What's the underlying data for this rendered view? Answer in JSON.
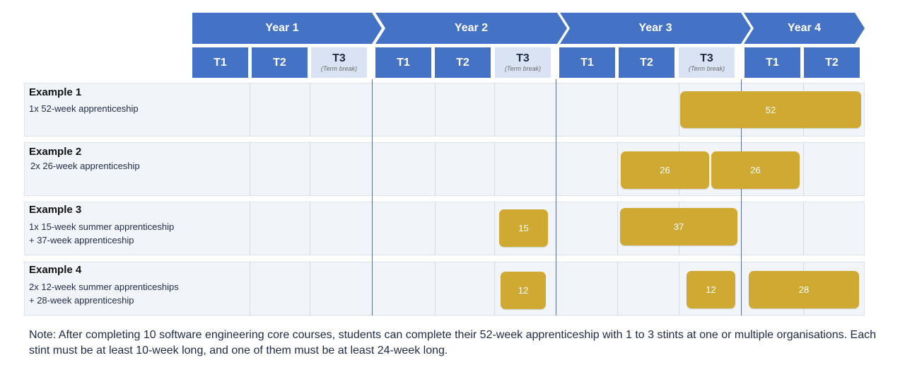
{
  "years": [
    {
      "label": "Year 1"
    },
    {
      "label": "Year 2"
    },
    {
      "label": "Year 3"
    },
    {
      "label": "Year 4"
    }
  ],
  "terms": [
    {
      "label": "T1",
      "sub": "",
      "break": false
    },
    {
      "label": "T2",
      "sub": "",
      "break": false
    },
    {
      "label": "T3",
      "sub": "(Term break)",
      "break": true
    },
    {
      "label": "T1",
      "sub": "",
      "break": false
    },
    {
      "label": "T2",
      "sub": "",
      "break": false
    },
    {
      "label": "T3",
      "sub": "(Term break)",
      "break": true
    },
    {
      "label": "T1",
      "sub": "",
      "break": false
    },
    {
      "label": "T2",
      "sub": "",
      "break": false
    },
    {
      "label": "T3",
      "sub": "(Term break)",
      "break": true
    },
    {
      "label": "T1",
      "sub": "",
      "break": false
    },
    {
      "label": "T2",
      "sub": "",
      "break": false
    }
  ],
  "examples": [
    {
      "title": "Example 1",
      "description": "1x 52-week apprenticeship",
      "stints": [
        {
          "weeks": "52"
        }
      ]
    },
    {
      "title": "Example 2",
      "description": "2x 26-week apprenticeship",
      "stints": [
        {
          "weeks": "26"
        },
        {
          "weeks": "26"
        }
      ]
    },
    {
      "title": "Example 3",
      "description": "1x 15-week summer apprenticeship\n+ 37-week apprenticeship",
      "stints": [
        {
          "weeks": "15"
        },
        {
          "weeks": "37"
        }
      ]
    },
    {
      "title": "Example 4",
      "description": "2x 12-week summer apprenticeships\n+ 28-week apprenticeship",
      "stints": [
        {
          "weeks": "12"
        },
        {
          "weeks": "12"
        },
        {
          "weeks": "28"
        }
      ]
    }
  ],
  "note": "Note: After completing 10 software engineering core courses, students can complete their 52-week apprenticeship with 1 to 3 stints at one or multiple organisations. Each stint must be at least 10-week long, and one of them must be at least 24-week long.",
  "colors": {
    "header_blue": "#4472c4",
    "term_break": "#dae3f3",
    "stint_gold": "#d0a933",
    "row_bg": "#f1f5f9"
  }
}
